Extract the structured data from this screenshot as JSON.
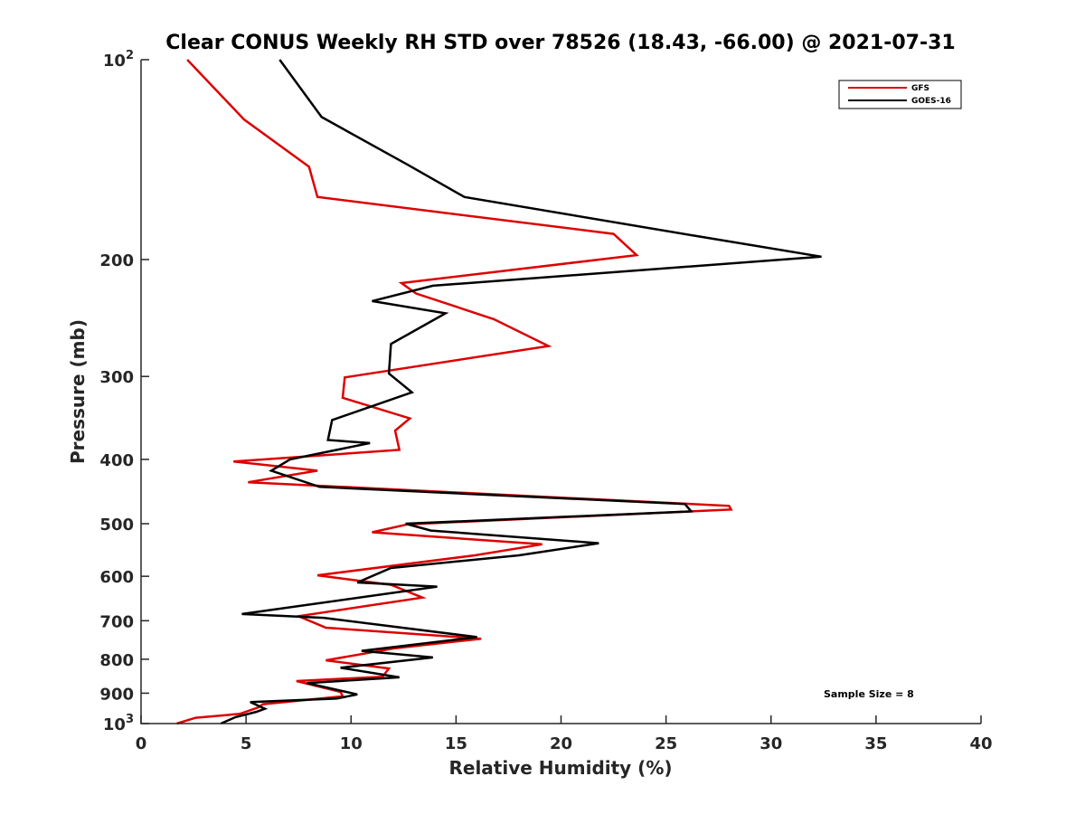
{
  "chart_data": {
    "type": "line",
    "title": "Clear CONUS Weekly RH STD over 78526 (18.43, -66.00) @ 2021-07-31",
    "xlabel": "Relative Humidity (%)",
    "ylabel": "Pressure (mb)",
    "xlim": [
      0,
      40
    ],
    "ylim": [
      100,
      1000
    ],
    "y_scale": "log",
    "y_reversed": true,
    "x_ticks": [
      "0",
      "5",
      "10",
      "15",
      "20",
      "25",
      "30",
      "35",
      "40"
    ],
    "y_ticks": [
      {
        "value": 100,
        "base": "10",
        "exp": "2"
      },
      {
        "value": 200,
        "base": "200",
        "exp": ""
      },
      {
        "value": 300,
        "base": "300",
        "exp": ""
      },
      {
        "value": 400,
        "base": "400",
        "exp": ""
      },
      {
        "value": 500,
        "base": "500",
        "exp": ""
      },
      {
        "value": 600,
        "base": "600",
        "exp": ""
      },
      {
        "value": 700,
        "base": "700",
        "exp": ""
      },
      {
        "value": 800,
        "base": "800",
        "exp": ""
      },
      {
        "value": 900,
        "base": "900",
        "exp": ""
      },
      {
        "value": 1000,
        "base": "10",
        "exp": "3"
      }
    ],
    "grid": false,
    "legend_position": "top-right",
    "annotation": "Sample Size = 8",
    "series": [
      {
        "name": "GFS",
        "color": "#dd0000",
        "x": [
          2.2,
          4.9,
          8.0,
          8.4,
          22.5,
          23.6,
          12.4,
          13.1,
          16.8,
          19.4,
          9.7,
          9.6,
          12.8,
          12.1,
          12.3,
          4.4,
          8.4,
          5.1,
          28.0,
          28.1,
          12.7,
          11.0,
          19.1,
          15.9,
          8.4,
          11.9,
          13.4,
          7.5,
          8.8,
          16.2,
          12.1,
          8.8,
          11.8,
          11.5,
          7.4,
          9.5,
          9.6,
          5.8,
          5.6,
          4.7,
          2.6,
          1.7
        ],
        "y": [
          100,
          123,
          145,
          161,
          183,
          197,
          217,
          225,
          246,
          270,
          301,
          323,
          347,
          362,
          387,
          403,
          416,
          433,
          470,
          476,
          501,
          515,
          537,
          558,
          598,
          618,
          646,
          689,
          717,
          745,
          770,
          803,
          826,
          850,
          863,
          896,
          910,
          935,
          945,
          967,
          980,
          1000
        ]
      },
      {
        "name": "GOES-16",
        "color": "#000000",
        "x": [
          6.6,
          8.6,
          12.7,
          15.4,
          26.3,
          32.4,
          13.9,
          11.0,
          14.5,
          11.9,
          11.8,
          12.9,
          9.1,
          8.9,
          10.9,
          7.1,
          6.2,
          8.5,
          25.9,
          26.2,
          12.6,
          13.8,
          21.8,
          18.0,
          11.9,
          10.3,
          14.1,
          4.8,
          8.7,
          16.0,
          10.5,
          13.9,
          9.5,
          12.3,
          7.9,
          10.3,
          9.3,
          5.2,
          5.9,
          5.5,
          4.5,
          3.8
        ],
        "y": [
          100,
          122,
          144,
          161,
          184,
          198,
          219,
          231,
          241,
          268,
          297,
          317,
          349,
          374,
          378,
          400,
          416,
          440,
          467,
          479,
          500,
          512,
          535,
          558,
          583,
          613,
          622,
          684,
          693,
          741,
          777,
          795,
          824,
          852,
          869,
          904,
          917,
          928,
          950,
          960,
          978,
          1000
        ]
      }
    ]
  }
}
